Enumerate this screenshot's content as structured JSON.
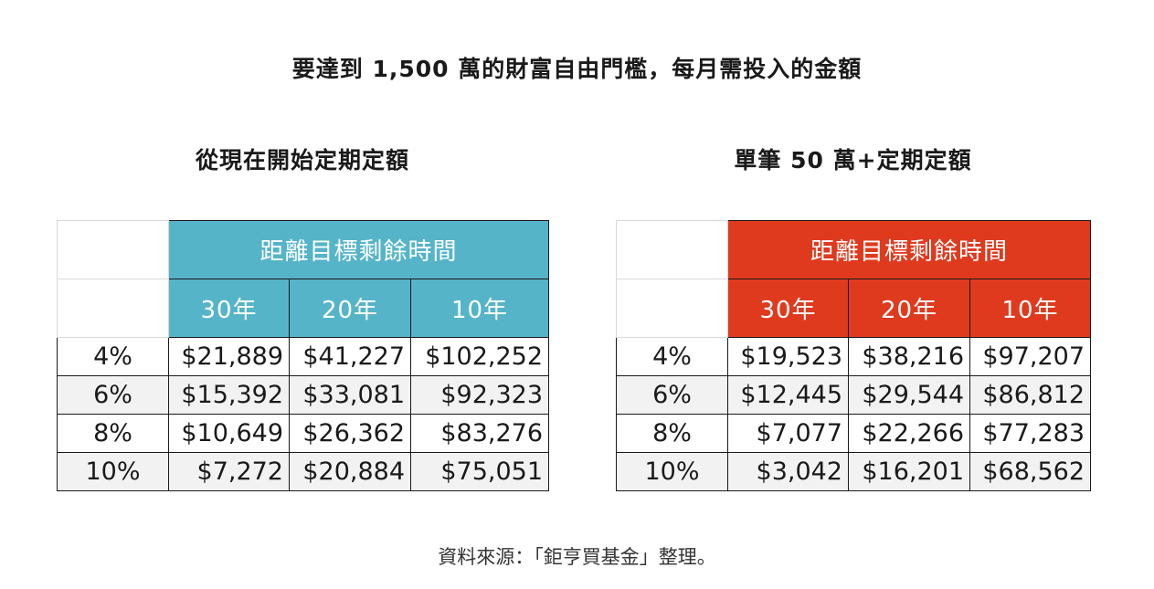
{
  "title": "要達到 1,500 萬的財富自由門檻，每月需投入的金額",
  "colors": {
    "left_header": "#56b4c9",
    "right_header": "#e03a1e"
  },
  "left": {
    "subtitle": "從現在開始定期定額",
    "header": "距離目標剩餘時間",
    "columns": [
      "30年",
      "20年",
      "10年"
    ],
    "rows": [
      {
        "rate": "4%",
        "values": [
          "$21,889",
          "$41,227",
          "$102,252"
        ]
      },
      {
        "rate": "6%",
        "values": [
          "$15,392",
          "$33,081",
          "$92,323"
        ]
      },
      {
        "rate": "8%",
        "values": [
          "$10,649",
          "$26,362",
          "$83,276"
        ]
      },
      {
        "rate": "10%",
        "values": [
          "$7,272",
          "$20,884",
          "$75,051"
        ]
      }
    ]
  },
  "right": {
    "subtitle": "單筆 50 萬+定期定額",
    "header": "距離目標剩餘時間",
    "columns": [
      "30年",
      "20年",
      "10年"
    ],
    "rows": [
      {
        "rate": "4%",
        "values": [
          "$19,523",
          "$38,216",
          "$97,207"
        ]
      },
      {
        "rate": "6%",
        "values": [
          "$12,445",
          "$29,544",
          "$86,812"
        ]
      },
      {
        "rate": "8%",
        "values": [
          "$7,077",
          "$22,266",
          "$77,283"
        ]
      },
      {
        "rate": "10%",
        "values": [
          "$3,042",
          "$16,201",
          "$68,562"
        ]
      }
    ]
  },
  "source": "資料來源：「鉅亨買基金」整理。"
}
